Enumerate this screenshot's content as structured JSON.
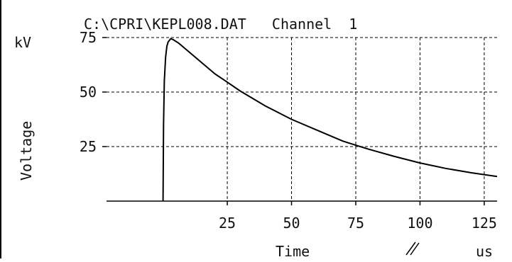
{
  "chart_data": {
    "type": "line",
    "title": "C:\\CPRI\\KEPL008.DAT   Channel  1",
    "ylabel": "Voltage",
    "yunit": "kV",
    "xlabel": "Time",
    "xunit": "us",
    "xlim": [
      -22,
      130
    ],
    "ylim": [
      0,
      75
    ],
    "grid": true,
    "x_ticks": [
      {
        "value": 25,
        "label": "25"
      },
      {
        "value": 50,
        "label": "50"
      },
      {
        "value": 75,
        "label": "75"
      },
      {
        "value": 100,
        "label": "100"
      },
      {
        "value": 125,
        "label": "125"
      }
    ],
    "y_ticks": [
      {
        "value": 25,
        "label": "25"
      },
      {
        "value": 50,
        "label": "50"
      },
      {
        "value": 75,
        "label": "75"
      }
    ],
    "series": [
      {
        "color": "#000000",
        "x": [
          0,
          0.2,
          0.5,
          1.0,
          1.5,
          2.0,
          3.0,
          4.0,
          6.0,
          8.0,
          10,
          15,
          20,
          25,
          30,
          40,
          50,
          60,
          70,
          80,
          90,
          100,
          110,
          120,
          130
        ],
        "y": [
          0,
          35,
          55,
          66,
          71,
          73,
          74.5,
          74,
          72.5,
          70.5,
          68.5,
          63.5,
          58.5,
          54.5,
          50.5,
          43.5,
          37.5,
          32.5,
          27.5,
          23.8,
          20.5,
          17.5,
          15,
          13,
          11.3
        ]
      }
    ]
  }
}
